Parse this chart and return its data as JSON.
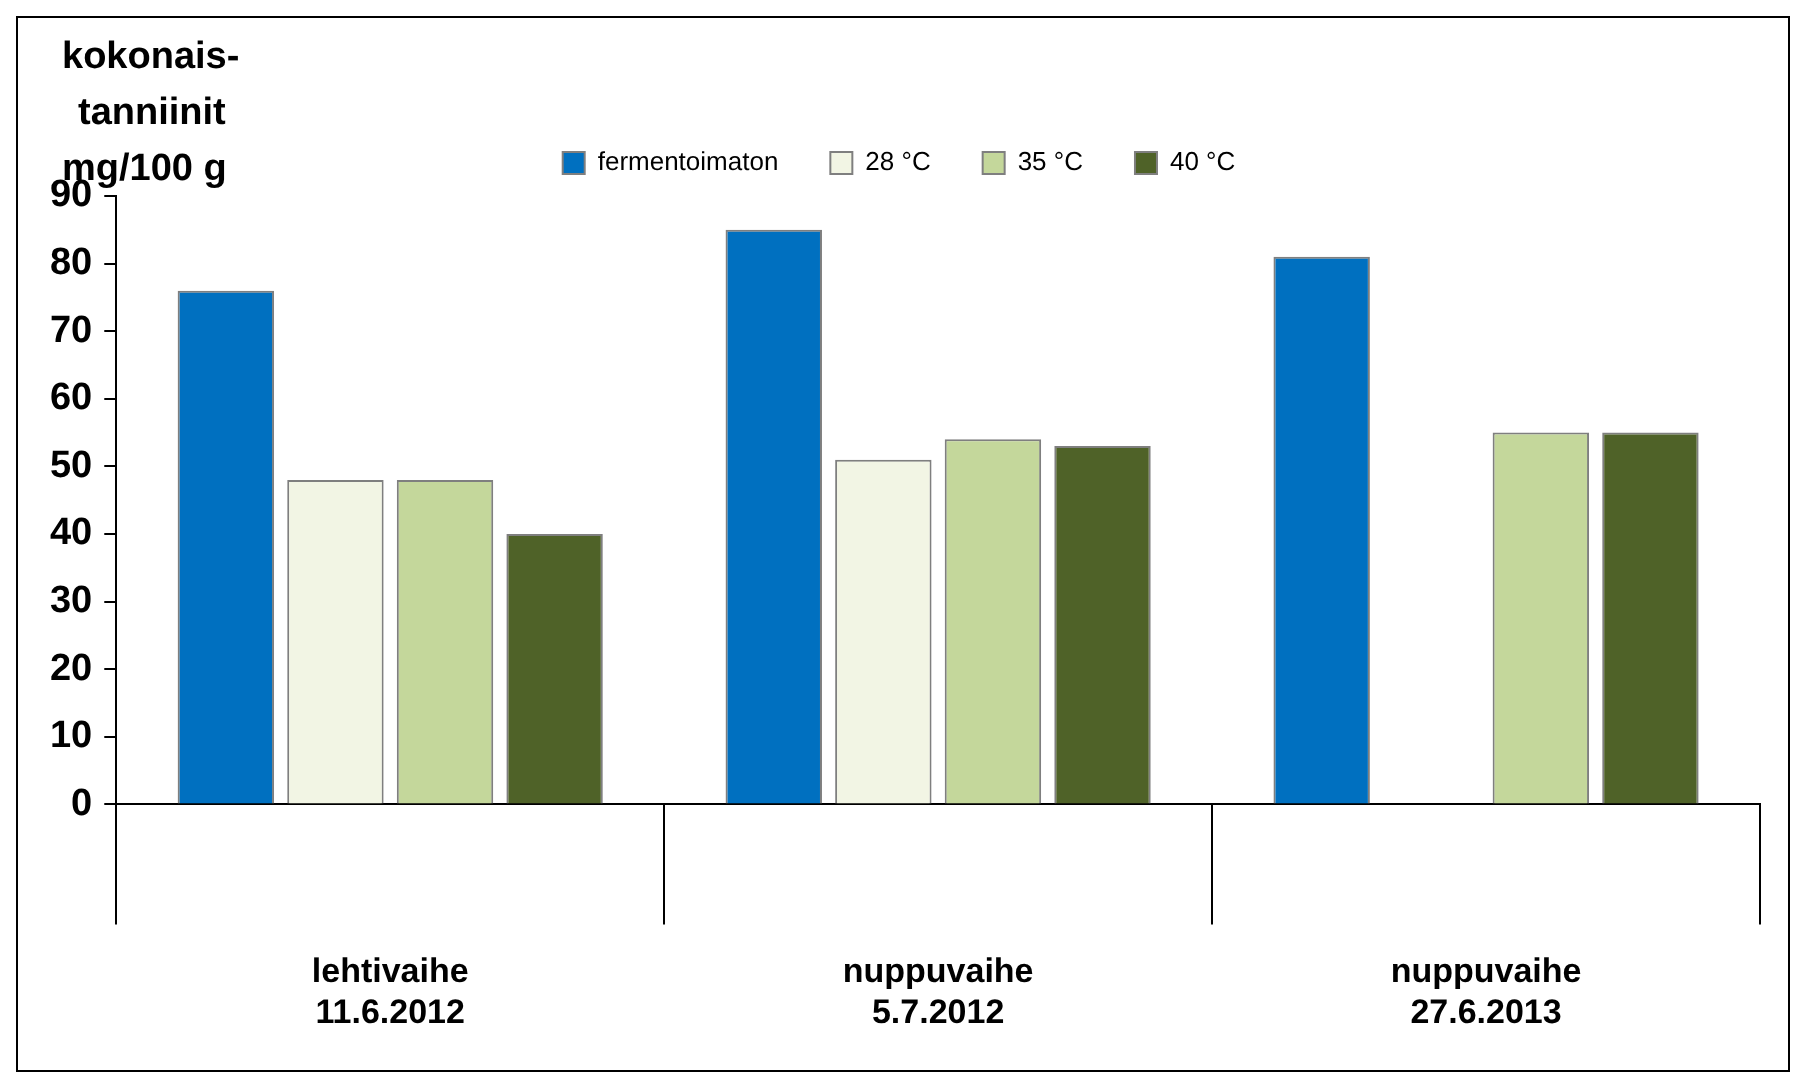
{
  "chart_data": {
    "type": "bar",
    "ylabel": "kokonais-\ntanniinit\nmg/100 g",
    "categories": [
      "lehtivaihe\n11.6.2012",
      "nuppuvaihe\n5.7.2012",
      "nuppuvaihe\n27.6.2013"
    ],
    "series": [
      {
        "name": "fermentoimaton",
        "color": "#0070c0",
        "values": [
          76,
          85,
          81
        ]
      },
      {
        "name": "28 °C",
        "color": "#f2f5e4",
        "values": [
          48,
          51,
          null
        ]
      },
      {
        "name": "35 °C",
        "color": "#c4d79b",
        "values": [
          48,
          54,
          55
        ]
      },
      {
        "name": "40 °C",
        "color": "#4f6228",
        "values": [
          40,
          53,
          55
        ]
      }
    ],
    "ylim": [
      0,
      90
    ],
    "yticks": [
      0,
      10,
      20,
      30,
      40,
      50,
      60,
      70,
      80,
      90
    ],
    "grid": false,
    "legend": "top"
  }
}
